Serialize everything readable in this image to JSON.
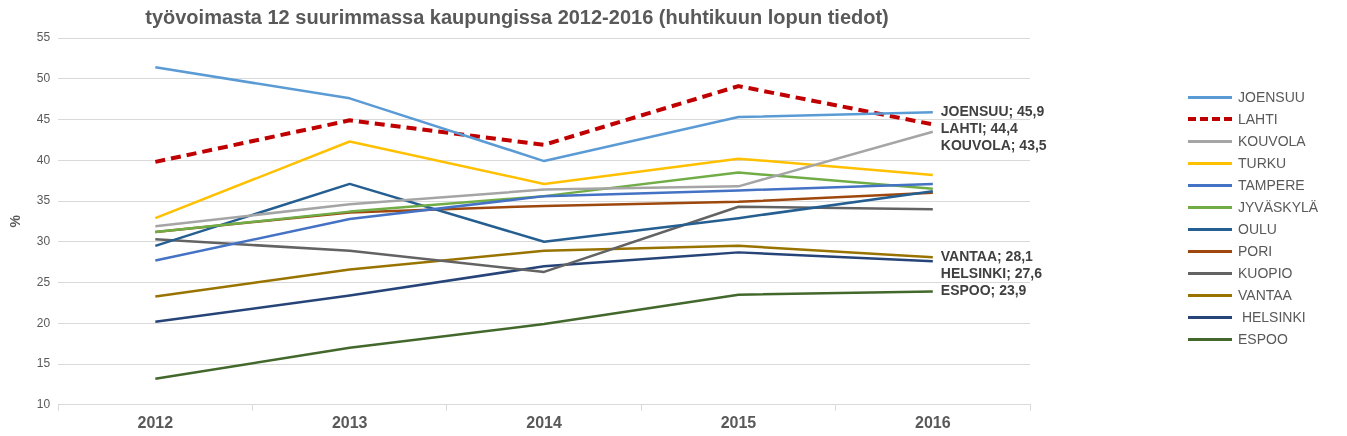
{
  "chart_data": {
    "type": "line",
    "title": "työvoimasta 12 suurimmassa kaupungissa 2012-2016 (huhtikuun lopun tiedot)",
    "ylabel": "%",
    "categories": [
      "2012",
      "2013",
      "2014",
      "2015",
      "2016"
    ],
    "ylim": [
      10,
      55
    ],
    "yticks": [
      10,
      15,
      20,
      25,
      30,
      35,
      40,
      45,
      50,
      55
    ],
    "grid": "y",
    "legend": "right",
    "marker": "none",
    "series": [
      {
        "name": "JOENSUU",
        "color": "#5b9bd5",
        "values": [
          51.4,
          47.6,
          39.9,
          45.3,
          45.9
        ]
      },
      {
        "name": "LAHTI",
        "color": "#c00000",
        "line_style": "dashed",
        "values": [
          39.8,
          44.9,
          41.9,
          49.1,
          44.4
        ]
      },
      {
        "name": "KOUVOLA",
        "color": "#a5a5a5",
        "values": [
          31.9,
          34.6,
          36.4,
          36.8,
          43.5
        ]
      },
      {
        "name": "TURKU",
        "color": "#ffc000",
        "values": [
          32.9,
          42.3,
          37.1,
          40.2,
          38.2
        ]
      },
      {
        "name": "TAMPERE",
        "color": "#4472c4",
        "values": [
          27.7,
          32.8,
          35.6,
          36.3,
          37.1
        ]
      },
      {
        "name": "JYVÄSKYLÄ",
        "color": "#70ad47",
        "values": [
          31.2,
          33.7,
          35.6,
          38.5,
          36.5
        ]
      },
      {
        "name": "OULU",
        "color": "#255e91",
        "values": [
          29.5,
          37.1,
          30.0,
          32.9,
          36.2
        ]
      },
      {
        "name": "PORI",
        "color": "#9e480e",
        "values": [
          31.2,
          33.6,
          34.4,
          34.9,
          36.0
        ]
      },
      {
        "name": "KUOPIO",
        "color": "#636363",
        "values": [
          30.3,
          28.9,
          26.3,
          34.3,
          34.0
        ]
      },
      {
        "name": "VANTAA",
        "color": "#997300",
        "values": [
          23.3,
          26.6,
          28.9,
          29.5,
          28.1
        ]
      },
      {
        "name": " HELSINKI",
        "color": "#264478",
        "values": [
          20.2,
          23.4,
          27.0,
          28.7,
          27.6
        ]
      },
      {
        "name": "ESPOO",
        "color": "#43682b",
        "values": [
          13.2,
          17.0,
          19.9,
          23.5,
          23.9
        ]
      }
    ],
    "annotations": [
      {
        "text": "JOENSUU; 45,9",
        "x": "2016",
        "y": 45.9
      },
      {
        "text": "LAHTI; 44,4",
        "x": "2016",
        "y": 44.4
      },
      {
        "text": "KOUVOLA; 43,5",
        "x": "2016",
        "y": 43.5
      },
      {
        "text": "VANTAA; 28,1",
        "x": "2016",
        "y": 28.1
      },
      {
        "text": "HELSINKI; 27,6",
        "x": "2016",
        "y": 27.6
      },
      {
        "text": "ESPOO; 23,9",
        "x": "2016",
        "y": 23.9
      }
    ]
  }
}
